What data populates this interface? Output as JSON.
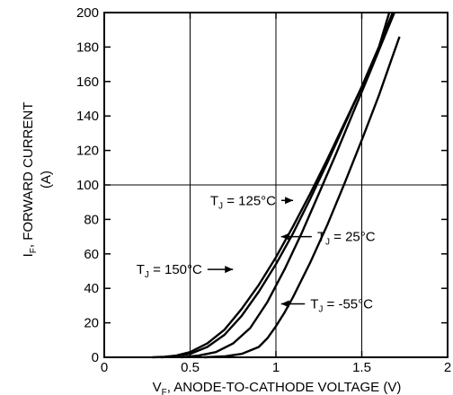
{
  "chart_data": {
    "type": "line",
    "title": "",
    "xlabel": {
      "main": "V",
      "sub": "F",
      "rest": ", ANODE-TO-CATHODE VOLTAGE (V)"
    },
    "ylabel": {
      "line1_main": "I",
      "line1_sub": "F",
      "line1_rest": ", FORWARD CURRENT",
      "line2": "(A)"
    },
    "xlim": [
      0,
      2
    ],
    "ylim": [
      0,
      200
    ],
    "xticks": [
      0,
      0.5,
      1,
      1.5,
      2
    ],
    "xtick_labels": [
      "0",
      "0.5",
      "1",
      "1.5",
      "2"
    ],
    "yticks": [
      0,
      20,
      40,
      60,
      80,
      100,
      120,
      140,
      160,
      180,
      200
    ],
    "ytick_labels": [
      "0",
      "20",
      "40",
      "60",
      "80",
      "100",
      "120",
      "140",
      "160",
      "180",
      "200"
    ],
    "grid": {
      "vertical": [
        0.5,
        1,
        1.5
      ],
      "horizontal": [
        100
      ]
    },
    "series": [
      {
        "name": "T_J = 150°C",
        "sub": "J",
        "label_rest": " = 150°C",
        "x": [
          0.28,
          0.35,
          0.42,
          0.5,
          0.6,
          0.7,
          0.8,
          0.9,
          1.0,
          1.1,
          1.2,
          1.3,
          1.4,
          1.5,
          1.6,
          1.66
        ],
        "y": [
          0,
          0.3,
          1,
          3,
          8,
          16,
          28,
          42,
          58,
          76,
          95,
          115,
          136,
          157,
          180,
          200
        ]
      },
      {
        "name": "T_J = 125°C",
        "sub": "J",
        "label_rest": " = 125°C",
        "x": [
          0.33,
          0.4,
          0.5,
          0.6,
          0.7,
          0.8,
          0.9,
          1.0,
          1.1,
          1.2,
          1.3,
          1.4,
          1.5,
          1.6,
          1.68
        ],
        "y": [
          0,
          0.5,
          2,
          6,
          13,
          24,
          38,
          54,
          72,
          92,
          113,
          135,
          157,
          180,
          200
        ]
      },
      {
        "name": "T_J = 25°C",
        "sub": "J",
        "label_rest": " = 25°C",
        "x": [
          0.45,
          0.55,
          0.65,
          0.75,
          0.85,
          0.95,
          1.05,
          1.15,
          1.25,
          1.35,
          1.45,
          1.55,
          1.62,
          1.69
        ],
        "y": [
          0,
          1,
          3,
          8,
          17,
          32,
          51,
          72,
          95,
          118,
          142,
          166,
          183,
          200
        ]
      },
      {
        "name": "T_J = -55°C",
        "sub": "J",
        "label_rest": " = -55°C",
        "x": [
          0.58,
          0.7,
          0.8,
          0.9,
          0.95,
          1.0,
          1.05,
          1.1,
          1.2,
          1.3,
          1.4,
          1.5,
          1.6,
          1.67,
          1.72
        ],
        "y": [
          0,
          0.5,
          2,
          6,
          11,
          18,
          26,
          35,
          55,
          77,
          101,
          126,
          152,
          172,
          186
        ]
      }
    ],
    "annotations": [
      {
        "series": 1,
        "text_x": 1.0,
        "text_y": 91,
        "arrow_to_x": 1.1,
        "arrow_to_y": 91,
        "anchor": "end"
      },
      {
        "series": 0,
        "text_x": 0.57,
        "text_y": 51,
        "arrow_to_x": 0.75,
        "arrow_to_y": 51,
        "anchor": "end"
      },
      {
        "series": 2,
        "text_x": 1.24,
        "text_y": 70,
        "arrow_to_x": 1.03,
        "arrow_to_y": 70,
        "anchor": "start"
      },
      {
        "series": 3,
        "text_x": 1.2,
        "text_y": 31,
        "arrow_to_x": 1.03,
        "arrow_to_y": 31,
        "anchor": "start"
      }
    ]
  }
}
